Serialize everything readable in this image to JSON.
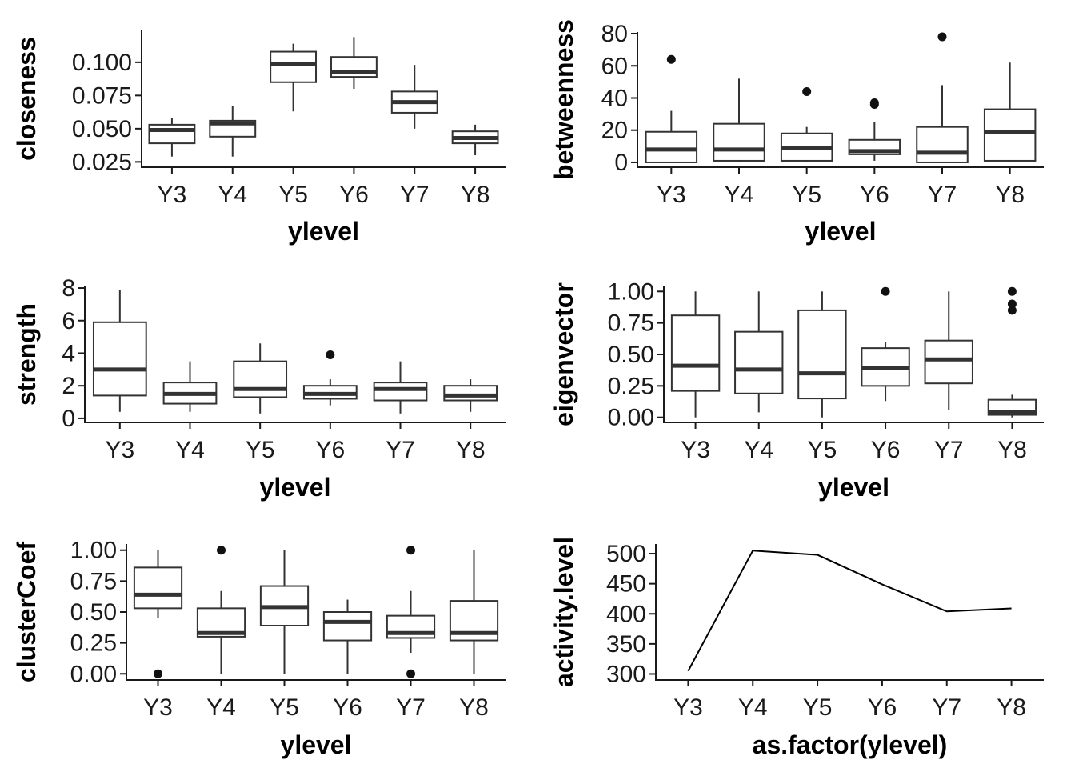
{
  "chart_data": [
    {
      "id": "closeness",
      "type": "box",
      "xlabel": "ylevel",
      "ylabel": "closeness",
      "categories": [
        "Y3",
        "Y4",
        "Y5",
        "Y6",
        "Y7",
        "Y8"
      ],
      "ylim": [
        0.021,
        0.124
      ],
      "yticks": [
        0.025,
        0.05,
        0.075,
        0.1
      ],
      "yticklabels": [
        "0.025",
        "0.050",
        "0.075",
        "0.100"
      ],
      "boxes": [
        {
          "lo": 0.029,
          "q1": 0.039,
          "med": 0.049,
          "q3": 0.053,
          "hi": 0.058,
          "out": []
        },
        {
          "lo": 0.029,
          "q1": 0.044,
          "med": 0.054,
          "q3": 0.056,
          "hi": 0.067,
          "out": []
        },
        {
          "lo": 0.063,
          "q1": 0.085,
          "med": 0.099,
          "q3": 0.108,
          "hi": 0.114,
          "out": []
        },
        {
          "lo": 0.08,
          "q1": 0.089,
          "med": 0.093,
          "q3": 0.104,
          "hi": 0.119,
          "out": []
        },
        {
          "lo": 0.05,
          "q1": 0.062,
          "med": 0.07,
          "q3": 0.078,
          "hi": 0.098,
          "out": []
        },
        {
          "lo": 0.03,
          "q1": 0.039,
          "med": 0.043,
          "q3": 0.048,
          "hi": 0.053,
          "out": []
        }
      ]
    },
    {
      "id": "betweenness",
      "type": "box",
      "xlabel": "ylevel",
      "ylabel": "betweenness",
      "categories": [
        "Y3",
        "Y4",
        "Y5",
        "Y6",
        "Y7",
        "Y8"
      ],
      "ylim": [
        -3,
        81
      ],
      "yticks": [
        0,
        20,
        40,
        60,
        80
      ],
      "yticklabels": [
        "0",
        "20",
        "40",
        "60",
        "80"
      ],
      "boxes": [
        {
          "lo": 0,
          "q1": 0,
          "med": 8,
          "q3": 19,
          "hi": 32,
          "out": [
            64
          ]
        },
        {
          "lo": 0,
          "q1": 1,
          "med": 8,
          "q3": 24,
          "hi": 52,
          "out": []
        },
        {
          "lo": 0,
          "q1": 1,
          "med": 9,
          "q3": 18,
          "hi": 22,
          "out": [
            44
          ]
        },
        {
          "lo": 1,
          "q1": 5,
          "med": 7,
          "q3": 14,
          "hi": 25,
          "out": [
            36,
            37
          ]
        },
        {
          "lo": 0,
          "q1": 0,
          "med": 6,
          "q3": 22,
          "hi": 48,
          "out": [
            78
          ]
        },
        {
          "lo": 0,
          "q1": 1,
          "med": 19,
          "q3": 33,
          "hi": 62,
          "out": []
        }
      ]
    },
    {
      "id": "strength",
      "type": "box",
      "xlabel": "ylevel",
      "ylabel": "strength",
      "categories": [
        "Y3",
        "Y4",
        "Y5",
        "Y6",
        "Y7",
        "Y8"
      ],
      "ylim": [
        -0.25,
        8.1
      ],
      "yticks": [
        0,
        2,
        4,
        6,
        8
      ],
      "yticklabels": [
        "0",
        "2",
        "4",
        "6",
        "8"
      ],
      "boxes": [
        {
          "lo": 0.4,
          "q1": 1.4,
          "med": 3.0,
          "q3": 5.9,
          "hi": 7.9,
          "out": []
        },
        {
          "lo": 0.4,
          "q1": 0.9,
          "med": 1.5,
          "q3": 2.2,
          "hi": 3.5,
          "out": []
        },
        {
          "lo": 0.3,
          "q1": 1.3,
          "med": 1.8,
          "q3": 3.5,
          "hi": 4.6,
          "out": []
        },
        {
          "lo": 0.8,
          "q1": 1.2,
          "med": 1.5,
          "q3": 2.0,
          "hi": 2.4,
          "out": [
            3.9
          ]
        },
        {
          "lo": 0.3,
          "q1": 1.1,
          "med": 1.8,
          "q3": 2.2,
          "hi": 3.5,
          "out": []
        },
        {
          "lo": 0.4,
          "q1": 1.1,
          "med": 1.4,
          "q3": 2.0,
          "hi": 2.4,
          "out": []
        }
      ]
    },
    {
      "id": "eigenvector",
      "type": "box",
      "xlabel": "ylevel",
      "ylabel": "eigenvector",
      "categories": [
        "Y3",
        "Y4",
        "Y5",
        "Y6",
        "Y7",
        "Y8"
      ],
      "ylim": [
        -0.04,
        1.04
      ],
      "yticks": [
        0,
        0.25,
        0.5,
        0.75,
        1
      ],
      "yticklabels": [
        "0.00",
        "0.25",
        "0.50",
        "0.75",
        "1.00"
      ],
      "boxes": [
        {
          "lo": 0.0,
          "q1": 0.21,
          "med": 0.41,
          "q3": 0.81,
          "hi": 1.0,
          "out": []
        },
        {
          "lo": 0.04,
          "q1": 0.19,
          "med": 0.38,
          "q3": 0.68,
          "hi": 1.0,
          "out": []
        },
        {
          "lo": 0.0,
          "q1": 0.15,
          "med": 0.35,
          "q3": 0.85,
          "hi": 1.0,
          "out": []
        },
        {
          "lo": 0.13,
          "q1": 0.25,
          "med": 0.39,
          "q3": 0.55,
          "hi": 0.6,
          "out": [
            1.0
          ]
        },
        {
          "lo": 0.06,
          "q1": 0.27,
          "med": 0.46,
          "q3": 0.61,
          "hi": 1.0,
          "out": []
        },
        {
          "lo": 0.0,
          "q1": 0.02,
          "med": 0.04,
          "q3": 0.14,
          "hi": 0.18,
          "out": [
            0.85,
            0.9,
            1.0
          ]
        }
      ]
    },
    {
      "id": "clusterCoef",
      "type": "box",
      "xlabel": "ylevel",
      "ylabel": "clusterCoef",
      "categories": [
        "Y3",
        "Y4",
        "Y5",
        "Y6",
        "Y7",
        "Y8"
      ],
      "ylim": [
        -0.05,
        1.05
      ],
      "yticks": [
        0,
        0.25,
        0.5,
        0.75,
        1
      ],
      "yticklabels": [
        "0.00",
        "0.25",
        "0.50",
        "0.75",
        "1.00"
      ],
      "boxes": [
        {
          "lo": 0.45,
          "q1": 0.53,
          "med": 0.64,
          "q3": 0.86,
          "hi": 1.0,
          "out": [
            0.0
          ]
        },
        {
          "lo": 0.0,
          "q1": 0.3,
          "med": 0.33,
          "q3": 0.53,
          "hi": 0.67,
          "out": [
            1.0
          ]
        },
        {
          "lo": 0.0,
          "q1": 0.39,
          "med": 0.54,
          "q3": 0.71,
          "hi": 1.0,
          "out": []
        },
        {
          "lo": 0.0,
          "q1": 0.27,
          "med": 0.42,
          "q3": 0.5,
          "hi": 0.6,
          "out": []
        },
        {
          "lo": 0.17,
          "q1": 0.29,
          "med": 0.33,
          "q3": 0.47,
          "hi": 0.67,
          "out": [
            0.0,
            1.0
          ]
        },
        {
          "lo": 0.0,
          "q1": 0.27,
          "med": 0.33,
          "q3": 0.59,
          "hi": 1.0,
          "out": []
        }
      ]
    },
    {
      "id": "activity",
      "type": "line",
      "xlabel": "as.factor(ylevel)",
      "ylabel": "activity.level",
      "categories": [
        "Y3",
        "Y4",
        "Y5",
        "Y6",
        "Y7",
        "Y8"
      ],
      "values": [
        305,
        505,
        498,
        449,
        404,
        409
      ],
      "ylim": [
        290,
        516
      ],
      "yticks": [
        300,
        350,
        400,
        450,
        500
      ],
      "yticklabels": [
        "300",
        "350",
        "400",
        "450",
        "500"
      ]
    }
  ]
}
